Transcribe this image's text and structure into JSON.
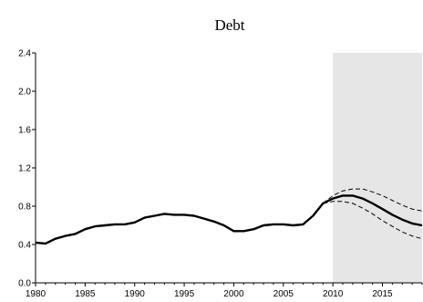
{
  "chart_data": {
    "type": "line",
    "title": "Debt",
    "xlabel": "",
    "ylabel": "",
    "xlim": [
      1980,
      2019
    ],
    "ylim": [
      0,
      2.4
    ],
    "x_ticks": [
      1980,
      1985,
      1990,
      1995,
      2000,
      2005,
      2010,
      2015
    ],
    "x_tick_labels": [
      "1980",
      "1985",
      "1990",
      "1995",
      "2000",
      "2005",
      "2010",
      "2015"
    ],
    "y_ticks": [
      0,
      0.4,
      0.8,
      1.2,
      1.6,
      2.0,
      2.4
    ],
    "y_tick_labels": [
      "0.0",
      "0.4",
      "0.8",
      "1.2",
      "1.6",
      "2.0",
      "2.4"
    ],
    "grid": false,
    "shaded_region": {
      "x_start": 2010,
      "x_end": 2019,
      "color": "#e6e6e6"
    },
    "series": [
      {
        "style": "solid",
        "x": [
          1980,
          1981,
          1982,
          1983,
          1984,
          1985,
          1986,
          1987,
          1988,
          1989,
          1990,
          1991,
          1992,
          1993,
          1994,
          1995,
          1996,
          1997,
          1998,
          1999,
          2000,
          2001,
          2002,
          2003,
          2004,
          2005,
          2006,
          2007,
          2008,
          2009,
          2010,
          2011,
          2012,
          2013,
          2014,
          2015,
          2016,
          2017,
          2018,
          2019
        ],
        "values": [
          0.42,
          0.41,
          0.46,
          0.49,
          0.51,
          0.56,
          0.59,
          0.6,
          0.61,
          0.61,
          0.63,
          0.68,
          0.7,
          0.72,
          0.71,
          0.71,
          0.7,
          0.67,
          0.64,
          0.6,
          0.54,
          0.54,
          0.56,
          0.6,
          0.61,
          0.61,
          0.6,
          0.61,
          0.7,
          0.83,
          0.88,
          0.91,
          0.91,
          0.88,
          0.83,
          0.77,
          0.71,
          0.66,
          0.62,
          0.6
        ]
      },
      {
        "style": "dashed",
        "x": [
          2009,
          2010,
          2011,
          2012,
          2013,
          2014,
          2015,
          2016,
          2017,
          2018,
          2019
        ],
        "values": [
          0.83,
          0.91,
          0.96,
          0.98,
          0.98,
          0.95,
          0.91,
          0.86,
          0.81,
          0.77,
          0.75
        ]
      },
      {
        "style": "dashed",
        "x": [
          2009,
          2010,
          2011,
          2012,
          2013,
          2014,
          2015,
          2016,
          2017,
          2018,
          2019
        ],
        "values": [
          0.83,
          0.85,
          0.85,
          0.83,
          0.78,
          0.72,
          0.65,
          0.59,
          0.53,
          0.49,
          0.46
        ]
      }
    ]
  }
}
